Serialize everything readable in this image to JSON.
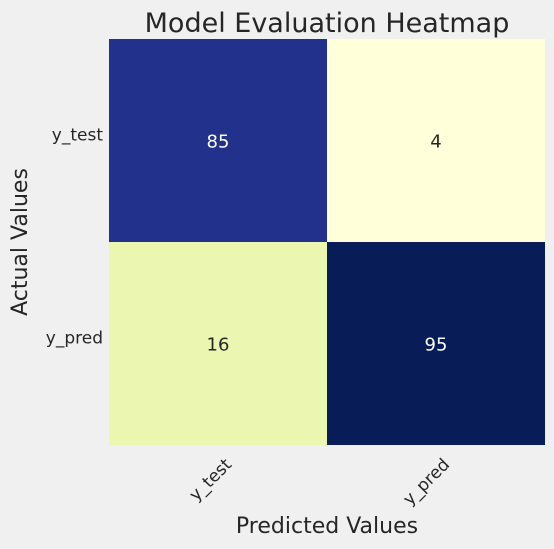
{
  "chart_data": {
    "type": "heatmap",
    "title": "Model Evaluation Heatmap",
    "xlabel": "Predicted Values",
    "ylabel": "Actual Values",
    "x_categories": [
      "y_test",
      "y_pred"
    ],
    "y_categories": [
      "y_test",
      "y_pred"
    ],
    "values": [
      [
        85,
        4
      ],
      [
        16,
        95
      ]
    ],
    "colormap": "YlGnBu",
    "colorbar": false,
    "grid": false,
    "colors": {
      "background": "#f0f0f0",
      "cells": [
        [
          "#22318c",
          "#ffffd9"
        ],
        [
          "#ebf7b1",
          "#081d58"
        ]
      ],
      "text_on_dark": "#ffffff",
      "text_on_light": "#262626"
    }
  }
}
